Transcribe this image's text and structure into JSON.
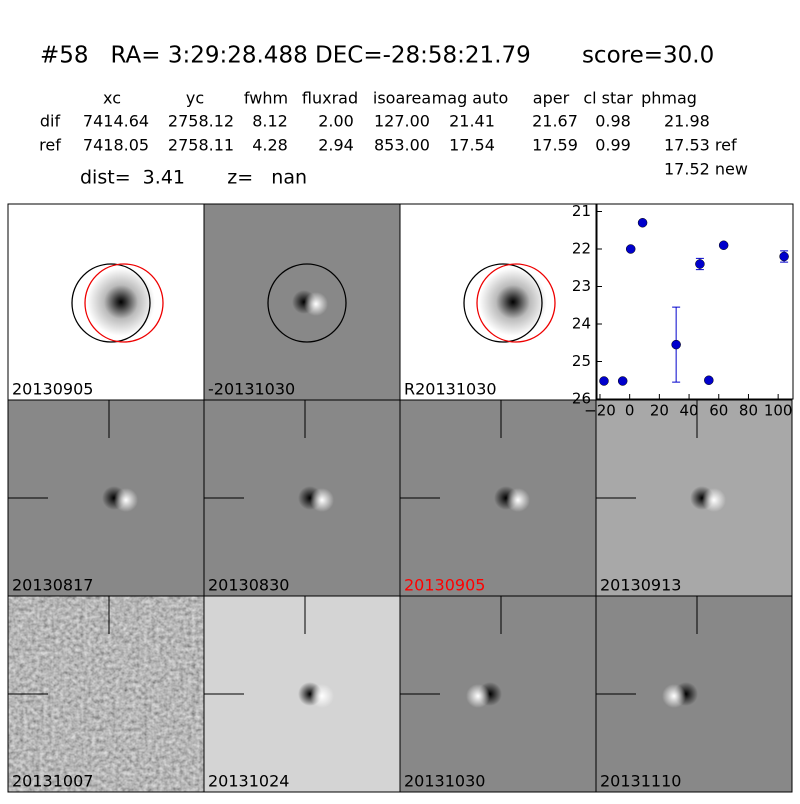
{
  "header": {
    "title": "#58   RA= 3:29:28.488 DEC=-28:58:21.79       score=30.0"
  },
  "table": {
    "columns": [
      "xc",
      "yc",
      "fwhm",
      "fluxrad",
      "isoarea",
      "mag auto",
      "aper",
      "cl star",
      "phmag"
    ],
    "rows": [
      [
        "dif",
        "7414.64",
        "2758.12",
        "8.12",
        "2.00",
        "127.00",
        "21.41",
        "21.67",
        "0.98",
        "21.98"
      ],
      [
        "ref",
        "7418.05",
        "2758.11",
        "4.28",
        "2.94",
        "853.00",
        "17.54",
        "17.59",
        "0.99",
        "17.53 ref"
      ]
    ],
    "extra": "17.52 new",
    "dist": "dist=  3.41       z=   nan"
  },
  "panels": [
    "20130905",
    "-20131030",
    "R20131030",
    "20130817",
    "20130830",
    "20130905",
    "20130913",
    "20131007",
    "20131024",
    "20131030",
    "20131110"
  ],
  "chart_data": {
    "type": "scatter",
    "x": [
      -17.3,
      -4.7,
      0.7,
      8.7,
      31.3,
      47.3,
      53.3,
      63.3,
      104
    ],
    "values": [
      25.52,
      25.52,
      22.0,
      21.3,
      24.55,
      22.4,
      25.5,
      21.9,
      22.2
    ],
    "errors": [
      0.05,
      0.05,
      0.05,
      0.03,
      1.0,
      0.15,
      0.05,
      0.04,
      0.15
    ],
    "color": "#0000cc",
    "xlim": [
      -22,
      110
    ],
    "ylim": [
      26,
      20.8
    ],
    "xticks": [
      {
        "value": -20,
        "label": "−20"
      },
      0,
      20,
      40,
      60,
      80,
      100
    ],
    "yticks": [
      21,
      22,
      23,
      24,
      25,
      26
    ]
  }
}
